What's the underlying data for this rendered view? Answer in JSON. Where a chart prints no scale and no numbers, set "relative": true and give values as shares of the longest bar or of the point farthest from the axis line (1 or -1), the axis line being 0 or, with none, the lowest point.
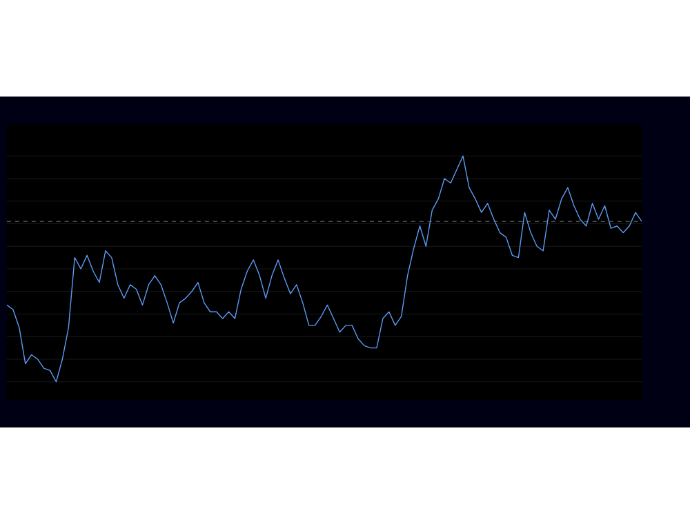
{
  "chart_data": {
    "type": "line",
    "relative": true,
    "grid": "y",
    "marker": "none",
    "line_style": "solid",
    "categories": [
      null,
      null,
      null,
      null,
      null,
      null,
      null,
      null,
      null,
      null,
      null,
      null,
      null,
      null,
      null,
      null,
      null,
      null,
      null,
      null,
      null,
      null,
      null,
      null,
      null,
      null,
      null,
      null,
      null,
      null,
      null,
      null,
      null,
      null,
      null,
      null,
      null,
      null,
      null,
      null,
      null,
      null,
      null,
      null,
      null,
      null,
      null,
      null,
      null,
      null,
      null,
      null,
      null,
      null,
      null,
      null,
      null,
      null,
      null,
      null,
      null,
      null,
      null,
      null,
      null,
      null,
      null,
      null,
      null,
      null,
      null,
      null,
      null,
      null,
      null,
      null,
      null,
      null,
      null,
      null,
      null,
      null,
      null,
      null,
      null,
      null,
      null,
      null,
      null,
      null,
      null,
      null,
      null,
      null,
      null,
      null,
      null,
      null,
      null,
      null,
      null,
      null,
      null,
      null
    ],
    "series": [
      {
        "color": "#5b9cf6",
        "values": [
          0.34,
          0.32,
          0.24,
          0.08,
          0.12,
          0.1,
          0.06,
          0.05,
          0,
          0.1,
          0.24,
          0.55,
          0.5,
          0.56,
          0.49,
          0.44,
          0.58,
          0.55,
          0.43,
          0.37,
          0.43,
          0.41,
          0.34,
          0.43,
          0.47,
          0.43,
          0.35,
          0.26,
          0.35,
          0.37,
          0.4,
          0.44,
          0.35,
          0.31,
          0.31,
          0.28,
          0.31,
          0.28,
          0.41,
          0.49,
          0.54,
          0.47,
          0.37,
          0.47,
          0.54,
          0.46,
          0.39,
          0.43,
          0.35,
          0.25,
          0.25,
          0.29,
          0.34,
          0.28,
          0.22,
          0.25,
          0.25,
          0.19,
          0.16,
          0.15,
          0.15,
          0.28,
          0.31,
          0.25,
          0.29,
          0.47,
          0.59,
          0.69,
          0.6,
          0.76,
          0.81,
          0.9,
          0.88,
          0.94,
          1,
          0.86,
          0.81,
          0.75,
          0.79,
          0.72,
          0.66,
          0.64,
          0.56,
          0.55,
          0.75,
          0.66,
          0.6,
          0.58,
          0.76,
          0.72,
          0.81,
          0.86,
          0.78,
          0.72,
          0.69,
          0.79,
          0.72,
          0.78,
          0.68,
          0.69,
          0.66,
          0.69,
          0.75,
          0.71
        ]
      }
    ],
    "ref_lines": [
      {
        "axis": "y",
        "value": 0.71,
        "color": "#787b86",
        "line_style": "dashed"
      }
    ]
  }
}
